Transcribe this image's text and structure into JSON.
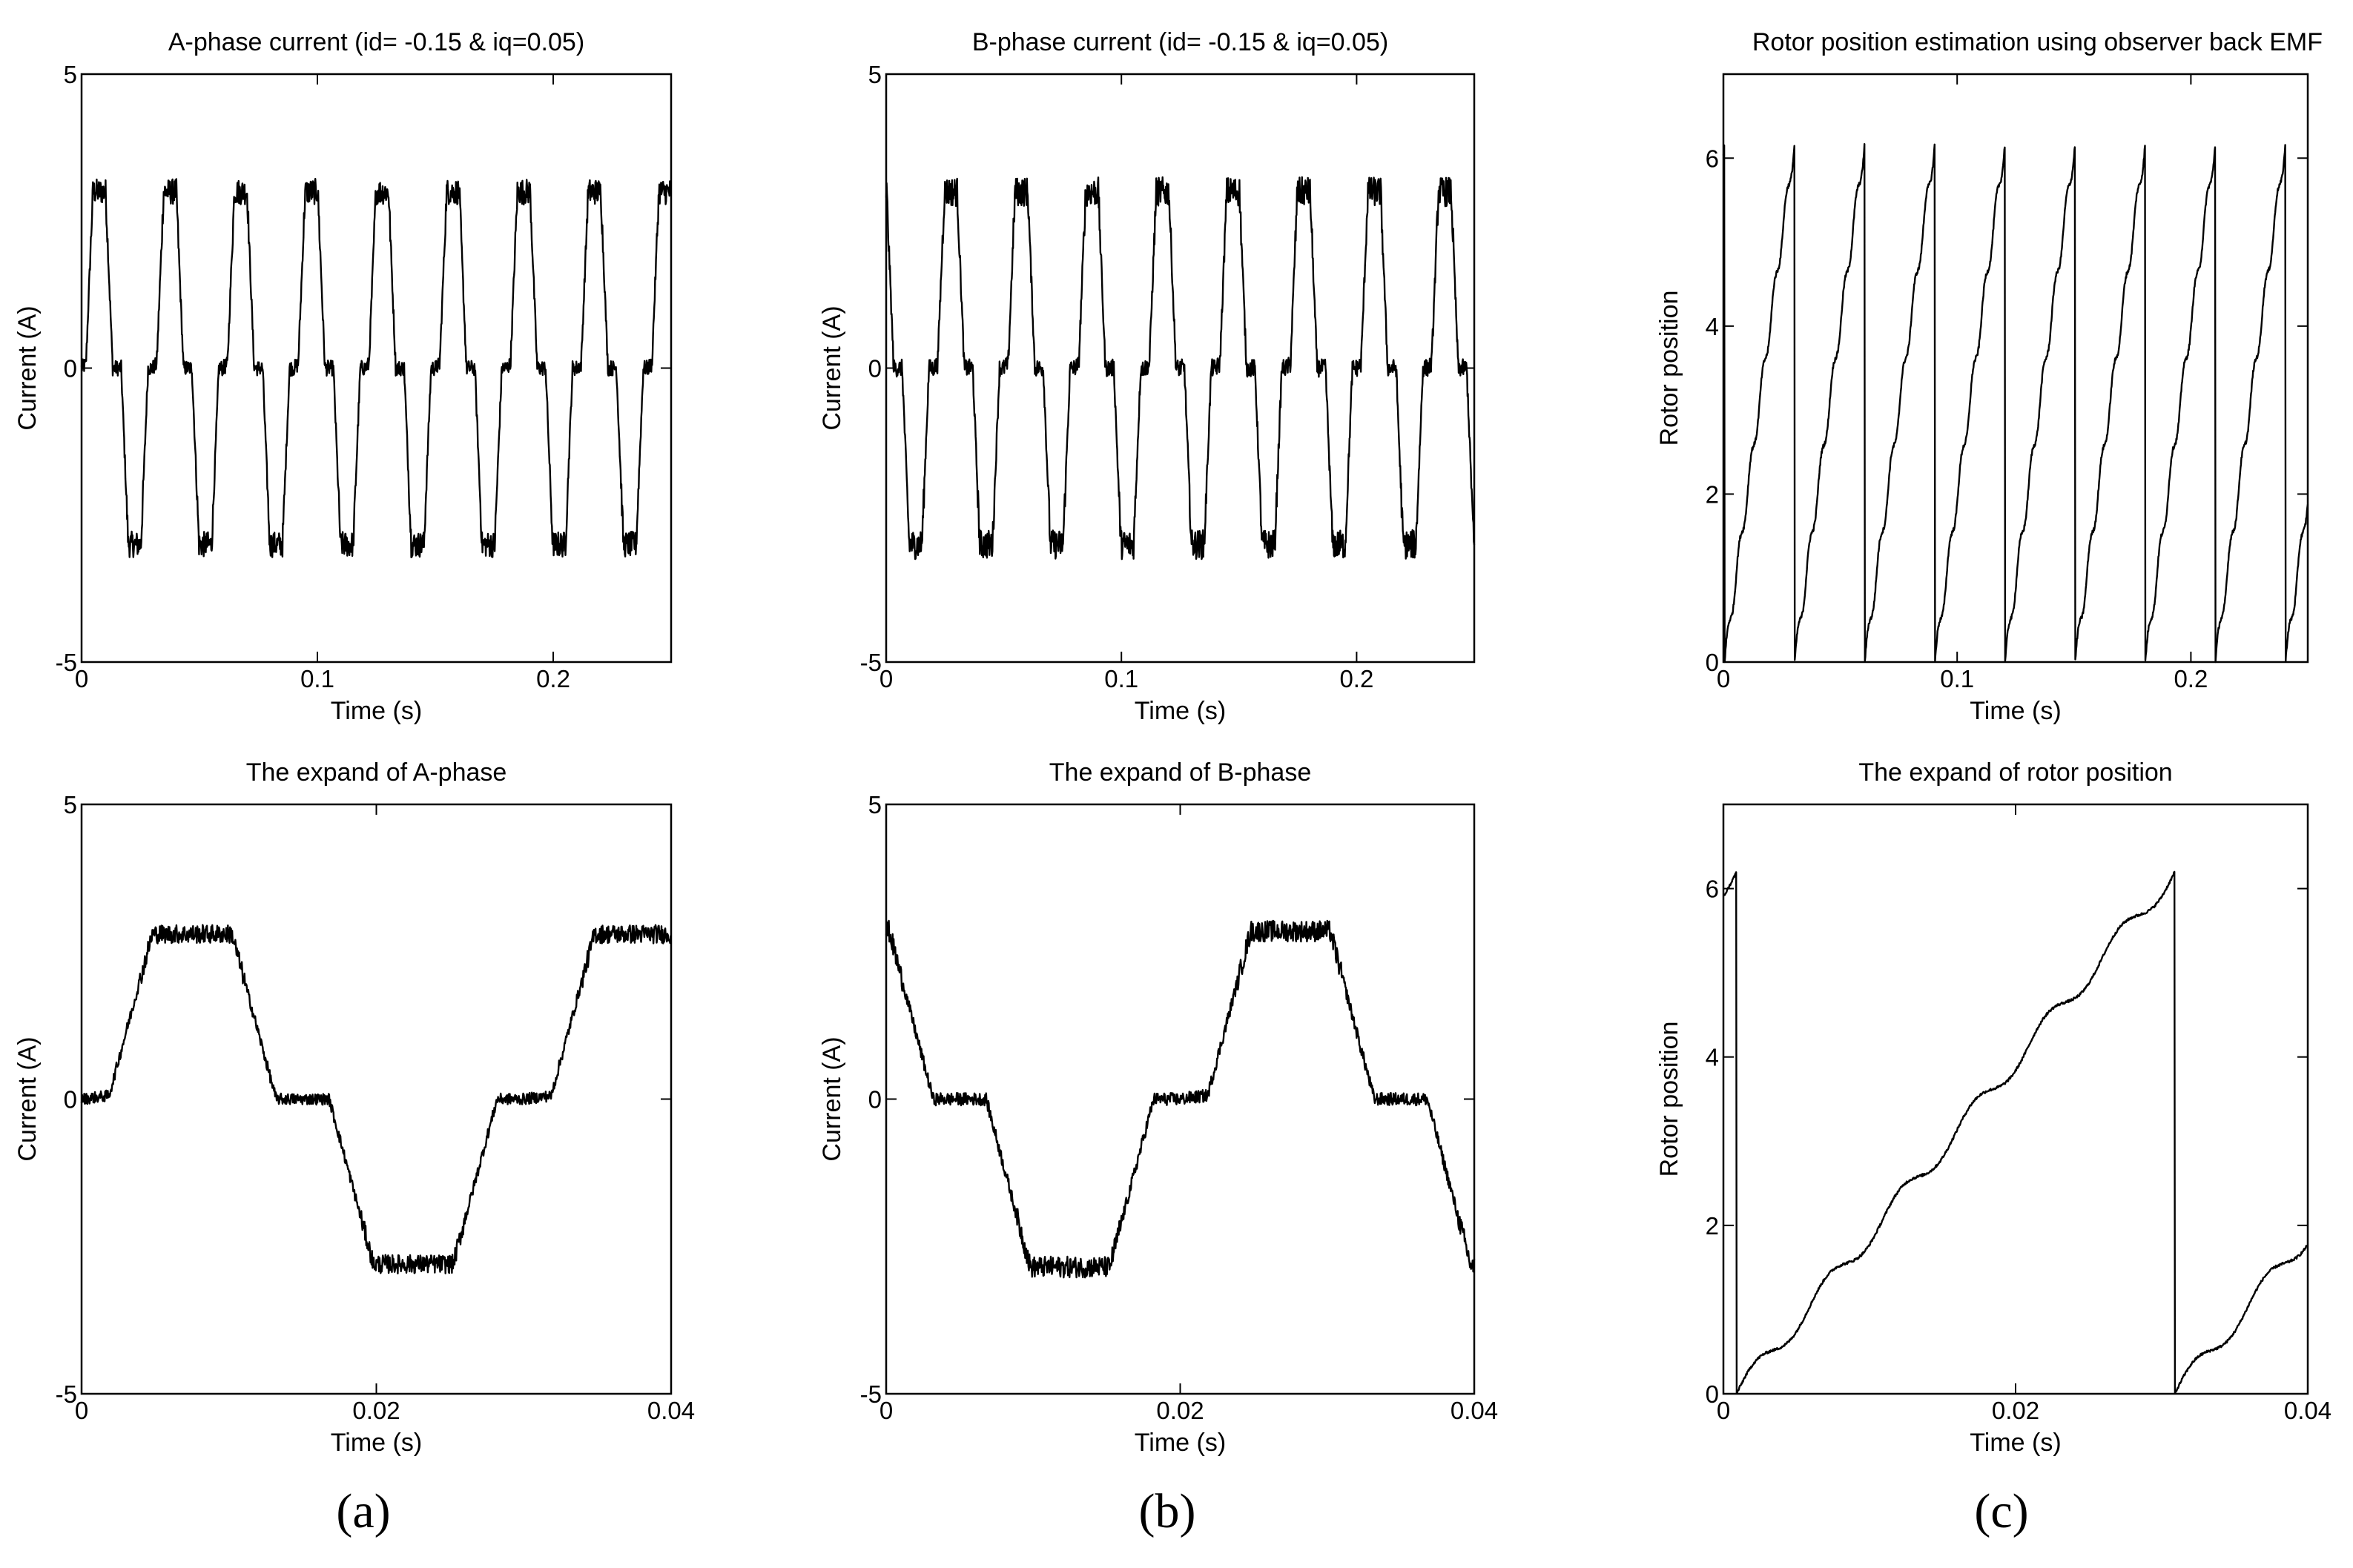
{
  "figure": {
    "panel_labels": [
      "(a)",
      "(b)",
      "(c)"
    ]
  },
  "chart_data": [
    {
      "id": "a-top",
      "type": "line",
      "title": "A-phase current (id= -0.15 & iq=0.05)",
      "xlabel": "Time (s)",
      "ylabel": "Current (A)",
      "xlim": [
        0,
        0.25
      ],
      "ylim": [
        -5,
        5
      ],
      "xticks": [
        0,
        0.1,
        0.2
      ],
      "xtick_labels": [
        "0",
        "0.1",
        "0.2"
      ],
      "yticks": [
        -5,
        0,
        5
      ],
      "ytick_labels": [
        "-5",
        "0",
        "5"
      ],
      "signal": {
        "kind": "trap",
        "amplitude": 3.0,
        "period": 0.03,
        "phase": 0.0,
        "ripple": 0.22,
        "x_start": 0,
        "x_end": 0.25
      }
    },
    {
      "id": "b-top",
      "type": "line",
      "title": "B-phase current (id= -0.15 & iq=0.05)",
      "xlabel": "Time (s)",
      "ylabel": "Current (A)",
      "xlim": [
        0,
        0.25
      ],
      "ylim": [
        -5,
        5
      ],
      "xticks": [
        0,
        0.1,
        0.2
      ],
      "xtick_labels": [
        "0",
        "0.1",
        "0.2"
      ],
      "yticks": [
        -5,
        0,
        5
      ],
      "ytick_labels": [
        "-5",
        "0",
        "5"
      ],
      "signal": {
        "kind": "trap",
        "amplitude": 3.0,
        "period": 0.03,
        "phase": -0.01,
        "ripple": 0.25,
        "x_start": 0,
        "x_end": 0.25
      }
    },
    {
      "id": "c-top",
      "type": "line",
      "title": "Rotor position estimation using observer back EMF",
      "xlabel": "Time (s)",
      "ylabel": "Rotor position",
      "xlim": [
        0,
        0.25
      ],
      "ylim": [
        0,
        7
      ],
      "xticks": [
        0,
        0.1,
        0.2
      ],
      "xtick_labels": [
        "0",
        "0.1",
        "0.2"
      ],
      "yticks": [
        0,
        2,
        4,
        6
      ],
      "ytick_labels": [
        "0",
        "2",
        "4",
        "6"
      ],
      "signal": {
        "kind": "saw",
        "amplitude": 6.2,
        "period": 0.03,
        "phase": 0.0005,
        "ripple": 0.05,
        "x_start": 0,
        "x_end": 0.25
      }
    },
    {
      "id": "a-bottom",
      "type": "line",
      "title": "The expand of A-phase",
      "xlabel": "Time (s)",
      "ylabel": "Current (A)",
      "xlim": [
        0,
        0.04
      ],
      "ylim": [
        -5,
        5
      ],
      "xticks": [
        0,
        0.02,
        0.04
      ],
      "xtick_labels": [
        "0",
        "0.02",
        "0.04"
      ],
      "yticks": [
        -5,
        0,
        5
      ],
      "ytick_labels": [
        "-5",
        "0",
        "5"
      ],
      "signal": {
        "kind": "trap",
        "amplitude": 2.8,
        "period": 0.03,
        "phase": 0.0,
        "ripple": 0.16,
        "x_start": 0,
        "x_end": 0.04
      }
    },
    {
      "id": "b-bottom",
      "type": "line",
      "title": "The expand of B-phase",
      "xlabel": "Time (s)",
      "ylabel": "Current (A)",
      "xlim": [
        0,
        0.04
      ],
      "ylim": [
        -5,
        5
      ],
      "xticks": [
        0,
        0.02,
        0.04
      ],
      "xtick_labels": [
        "0",
        "0.02",
        "0.04"
      ],
      "yticks": [
        -5,
        0,
        5
      ],
      "ytick_labels": [
        "-5",
        "0",
        "5"
      ],
      "signal": {
        "kind": "trap",
        "amplitude": 2.85,
        "period": 0.03,
        "phase": -0.01,
        "ripple": 0.18,
        "x_start": 0,
        "x_end": 0.04
      }
    },
    {
      "id": "c-bottom",
      "type": "line",
      "title": "The expand of rotor position",
      "xlabel": "Time (s)",
      "ylabel": "Rotor position",
      "xlim": [
        0,
        0.04
      ],
      "ylim": [
        0,
        7
      ],
      "xticks": [
        0,
        0.02,
        0.04
      ],
      "xtick_labels": [
        "0",
        "0.02",
        "0.04"
      ],
      "yticks": [
        0,
        2,
        4,
        6
      ],
      "ytick_labels": [
        "0",
        "2",
        "4",
        "6"
      ],
      "signal": {
        "kind": "saw",
        "amplitude": 6.2,
        "period": 0.03,
        "phase": 0.0009,
        "ripple": 0.03,
        "x_start": 0,
        "x_end": 0.04
      }
    }
  ]
}
